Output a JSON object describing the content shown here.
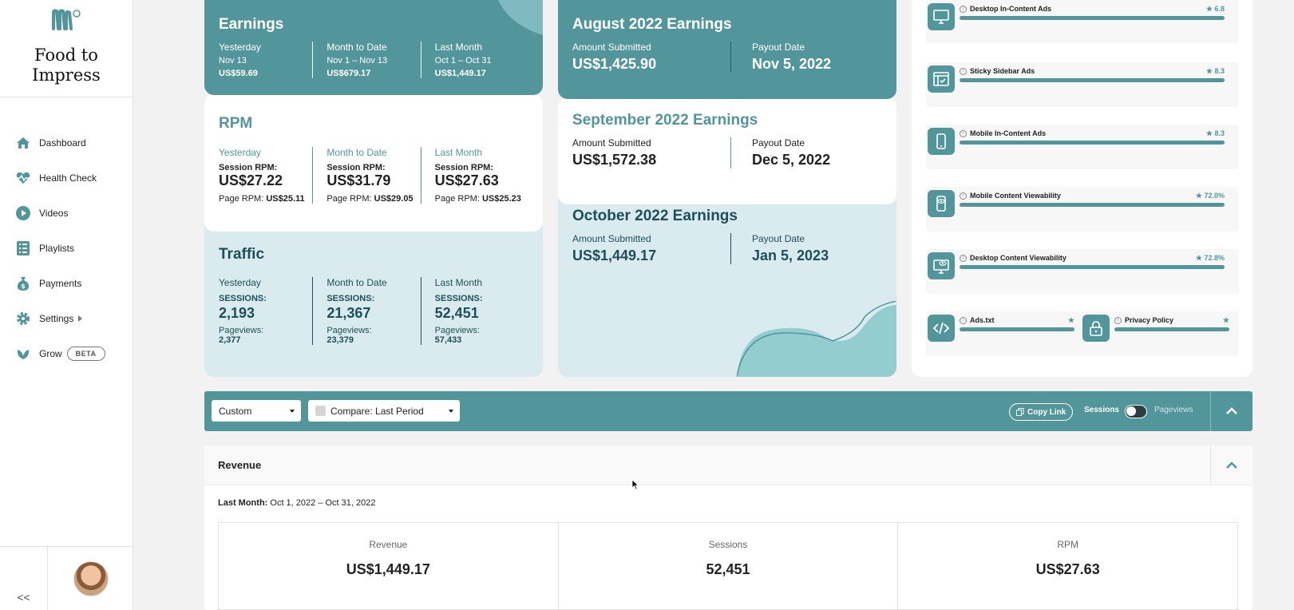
{
  "brand": {
    "name_line1": "Food to",
    "name_line2": "Impress"
  },
  "nav": {
    "dashboard": "Dashboard",
    "health_check": "Health Check",
    "videos": "Videos",
    "playlists": "Playlists",
    "payments": "Payments",
    "settings": "Settings",
    "grow": "Grow",
    "grow_badge": "BETA"
  },
  "collapse_label": "<<",
  "earnings": {
    "title": "Earnings",
    "cols": [
      {
        "label": "Yesterday",
        "range": "Nov 13",
        "value": "US$59.69"
      },
      {
        "label": "Month to Date",
        "range": "Nov 1 – Nov 13",
        "value": "US$679.17"
      },
      {
        "label": "Last Month",
        "range": "Oct 1 – Oct 31",
        "value": "US$1,449.17"
      }
    ]
  },
  "rpm": {
    "title": "RPM",
    "session_label": "Session RPM:",
    "page_label": "Page RPM:",
    "cols": [
      {
        "label": "Yesterday",
        "session": "US$27.22",
        "page": "US$25.11"
      },
      {
        "label": "Month to Date",
        "session": "US$31.79",
        "page": "US$29.05"
      },
      {
        "label": "Last Month",
        "session": "US$27.63",
        "page": "US$25.23"
      }
    ]
  },
  "traffic": {
    "title": "Traffic",
    "sessions_label": "SESSIONS:",
    "pageviews_label": "Pageviews:",
    "cols": [
      {
        "label": "Yesterday",
        "sessions": "2,193",
        "pageviews": "2,377"
      },
      {
        "label": "Month to Date",
        "sessions": "21,367",
        "pageviews": "23,379"
      },
      {
        "label": "Last Month",
        "sessions": "52,451",
        "pageviews": "57,433"
      }
    ]
  },
  "payouts": {
    "amount_label": "Amount Submitted",
    "date_label": "Payout Date",
    "august": {
      "title": "August 2022 Earnings",
      "amount": "US$1,425.90",
      "date": "Nov 5, 2022"
    },
    "september": {
      "title": "September 2022 Earnings",
      "amount": "US$1,572.38",
      "date": "Dec 5, 2022"
    },
    "october": {
      "title": "October 2022 Earnings",
      "amount": "US$1,449.17",
      "date": "Jan 5, 2023"
    }
  },
  "health": {
    "accent": "#52969c",
    "items": [
      {
        "label": "Desktop In-Content Ads",
        "score": "6.8",
        "icon": "desktop-icon"
      },
      {
        "label": "Sticky Sidebar Ads",
        "score": "8.3",
        "icon": "sidebar-ad-icon"
      },
      {
        "label": "Mobile In-Content Ads",
        "score": "8.3",
        "icon": "mobile-icon"
      },
      {
        "label": "Mobile Content Viewability",
        "score": "72.0%",
        "icon": "mobile-eye-icon"
      },
      {
        "label": "Desktop Content Viewability",
        "score": "72.8%",
        "icon": "desktop-eye-icon"
      },
      {
        "label": "Ads.txt",
        "score": "",
        "icon": "code-icon"
      },
      {
        "label": "Privacy Policy",
        "score": "",
        "icon": "lock-icon"
      }
    ]
  },
  "toolbar": {
    "range_select": "Custom",
    "compare_select": "Compare: Last Period",
    "copy_link": "Copy Link",
    "toggle_left": "Sessions",
    "toggle_right": "Pageviews"
  },
  "revenue": {
    "title": "Revenue",
    "period_label": "Last Month:",
    "period_value": "Oct 1, 2022 – Oct 31, 2022",
    "stats": [
      {
        "label": "Revenue",
        "value": "US$1,449.17"
      },
      {
        "label": "Sessions",
        "value": "52,451"
      },
      {
        "label": "RPM",
        "value": "US$27.63"
      }
    ]
  }
}
